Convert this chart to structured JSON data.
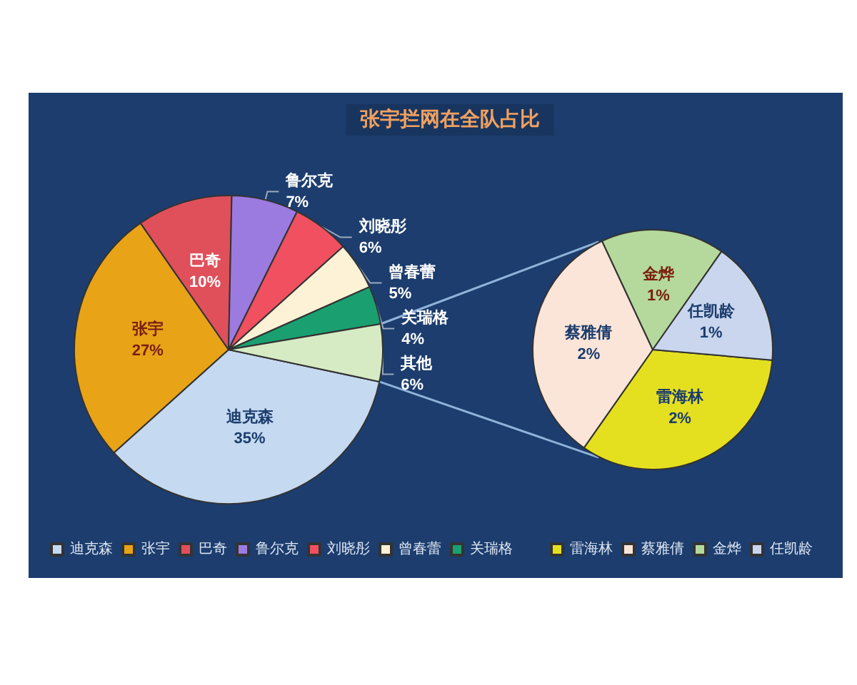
{
  "chart_data": [
    {
      "type": "pie",
      "title": "张宇拦网在全队占比",
      "categories": [
        "迪克森",
        "张宇",
        "巴奇",
        "鲁尔克",
        "刘晓彤",
        "曾春蕾",
        "关瑞格",
        "其他"
      ],
      "values": [
        35,
        27,
        10,
        7,
        6,
        5,
        4,
        6
      ],
      "value_labels": [
        "35%",
        "27%",
        "10%",
        "7%",
        "6%",
        "5%",
        "4%",
        "6%"
      ],
      "colors": [
        "#c5d9f0",
        "#e8a317",
        "#e0505a",
        "#9c7be0",
        "#f05060",
        "#fdf1d6",
        "#1aa070",
        "#d6ebc4"
      ],
      "legend": "bottom"
    },
    {
      "type": "pie",
      "categories": [
        "雷海林",
        "蔡雅倩",
        "金烨",
        "任凯龄"
      ],
      "values": [
        2,
        2,
        1,
        1
      ],
      "value_labels": [
        "2%",
        "2%",
        "1%",
        "1%"
      ],
      "colors": [
        "#e4e020",
        "#fbe5d9",
        "#b5d99c",
        "#c9d6ee"
      ],
      "legend": "bottom"
    }
  ]
}
